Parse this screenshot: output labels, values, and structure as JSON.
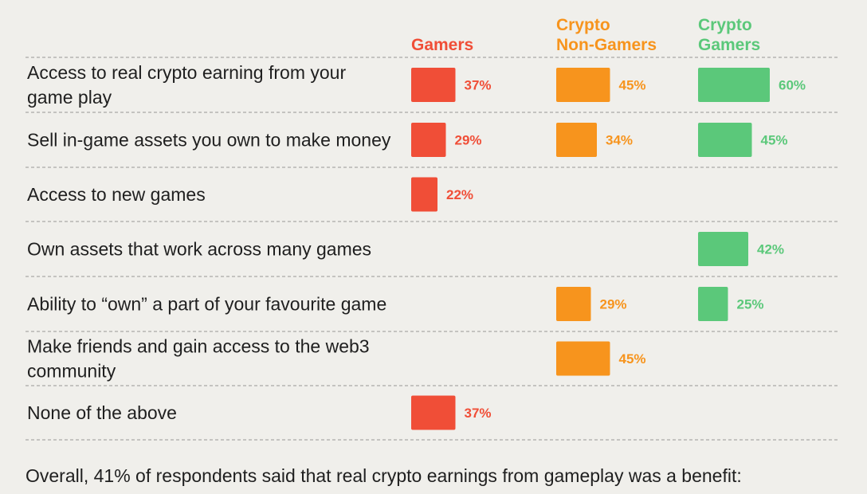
{
  "chart_data": {
    "type": "bar",
    "orientation": "horizontal",
    "categories": [
      "Access to real crypto earning  from your game play",
      "Sell in-game assets you own to make money",
      "Access to new games",
      "Own assets that work across many games",
      "Ability to “own” a part of your favourite game",
      "Make friends and gain access to the web3 community",
      "None of the above"
    ],
    "series": [
      {
        "name": "Gamers",
        "color": "#f04e37",
        "values": [
          37,
          29,
          22,
          null,
          null,
          null,
          37
        ]
      },
      {
        "name": "Crypto Non-Gamers",
        "color": "#f7941d",
        "values": [
          45,
          34,
          null,
          null,
          29,
          45,
          null
        ]
      },
      {
        "name": "Crypto Gamers",
        "color": "#5bc87a",
        "values": [
          60,
          45,
          null,
          42,
          25,
          null,
          null
        ]
      }
    ],
    "value_suffix": "%",
    "grid": "dashed row separators",
    "legend": "column headers"
  },
  "footer": {
    "text": "Overall, 41% of respondents said that real crypto earnings from gameplay was a benefit:"
  }
}
